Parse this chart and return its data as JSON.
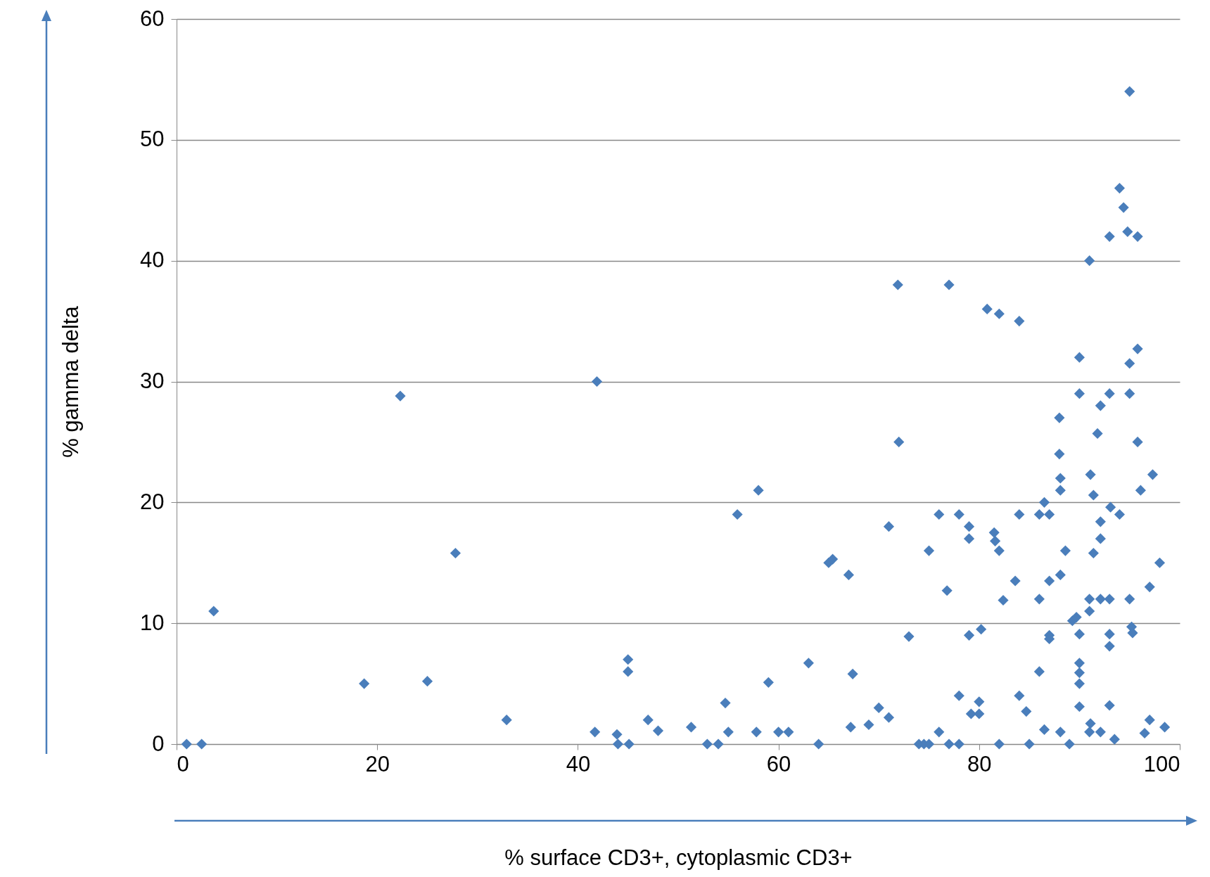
{
  "chart_data": {
    "type": "scatter",
    "xlabel": "% surface CD3+, cytoplasmic CD3+",
    "ylabel": "% gamma delta",
    "xlim": [
      0,
      100
    ],
    "ylim": [
      0,
      60
    ],
    "xticks": [
      0,
      20,
      40,
      60,
      80,
      100
    ],
    "yticks": [
      0,
      10,
      20,
      30,
      40,
      50,
      60
    ],
    "grid": "y",
    "marker": "diamond",
    "color": "#4a7ebb",
    "x": [
      1,
      2.5,
      3.7,
      18.7,
      22.3,
      25,
      27.8,
      32.9,
      41.7,
      41.9,
      43.9,
      44,
      45,
      45,
      45.1,
      47,
      48,
      51.3,
      52.9,
      54,
      54.7,
      55,
      55.9,
      57.8,
      58,
      59,
      60,
      61,
      63,
      64,
      65,
      65.4,
      67,
      67.2,
      67.4,
      69,
      70,
      71,
      71,
      71.9,
      72,
      73,
      74,
      74.5,
      75,
      75,
      76,
      76,
      76.8,
      77,
      77,
      78,
      78,
      78,
      79,
      79,
      79,
      79.2,
      80,
      80,
      80.2,
      80.8,
      81.5,
      81.6,
      82,
      82,
      82,
      82.4,
      83.6,
      84,
      84,
      84,
      84.7,
      85,
      86,
      86,
      86,
      86.5,
      86.5,
      87,
      87,
      87,
      87,
      88,
      88,
      88.1,
      88.1,
      88.1,
      88.1,
      88.6,
      89,
      89.3,
      89.7,
      90,
      90,
      90,
      90,
      90,
      90,
      90,
      91,
      91.1,
      91,
      91,
      91.1,
      91,
      91.4,
      91.4,
      91.8,
      92.1,
      92.1,
      92.1,
      92.1,
      92.1,
      93,
      93,
      93,
      93.1,
      93,
      93,
      93,
      93.5,
      94,
      94,
      94.4,
      94.8,
      95,
      95,
      95,
      95,
      95.2,
      95.3,
      95.8,
      95.8,
      95.8,
      96.1,
      96.5,
      97,
      97,
      97.3,
      98,
      98.5
    ],
    "values": [
      0,
      0,
      11,
      5,
      28.8,
      5.2,
      15.8,
      2,
      1,
      30,
      0.8,
      0,
      7,
      6,
      0,
      2,
      1.1,
      1.4,
      0,
      0,
      3.4,
      1,
      19,
      1,
      21,
      5.1,
      1,
      1,
      6.7,
      0,
      15,
      15.3,
      14,
      1.4,
      5.8,
      1.6,
      3,
      2.2,
      18,
      38,
      25,
      8.9,
      0,
      0,
      16,
      0,
      19,
      1,
      12.7,
      38,
      0,
      19,
      4,
      0,
      18,
      17,
      9,
      2.5,
      3.5,
      2.5,
      9.5,
      36,
      17.5,
      16.8,
      35.6,
      16,
      0,
      11.9,
      13.5,
      35,
      19,
      4,
      2.7,
      0,
      19,
      12,
      6,
      1.2,
      20,
      19,
      13.5,
      9,
      8.7,
      27,
      24,
      22,
      21,
      14,
      1,
      16,
      0,
      10.2,
      10.5,
      32,
      29,
      6.7,
      5.9,
      5,
      9.1,
      3.1,
      40,
      22.3,
      12,
      11,
      1.7,
      1,
      20.6,
      15.8,
      25.7,
      28,
      18.4,
      17,
      12,
      1,
      42,
      29,
      12,
      19.6,
      9.1,
      8.1,
      3.2,
      0.4,
      46,
      19,
      44.4,
      42.4,
      54,
      31.5,
      29,
      12,
      9.7,
      9.2,
      32.7,
      42,
      25,
      21,
      0.9,
      13,
      2,
      22.3,
      15,
      1.4
    ]
  }
}
